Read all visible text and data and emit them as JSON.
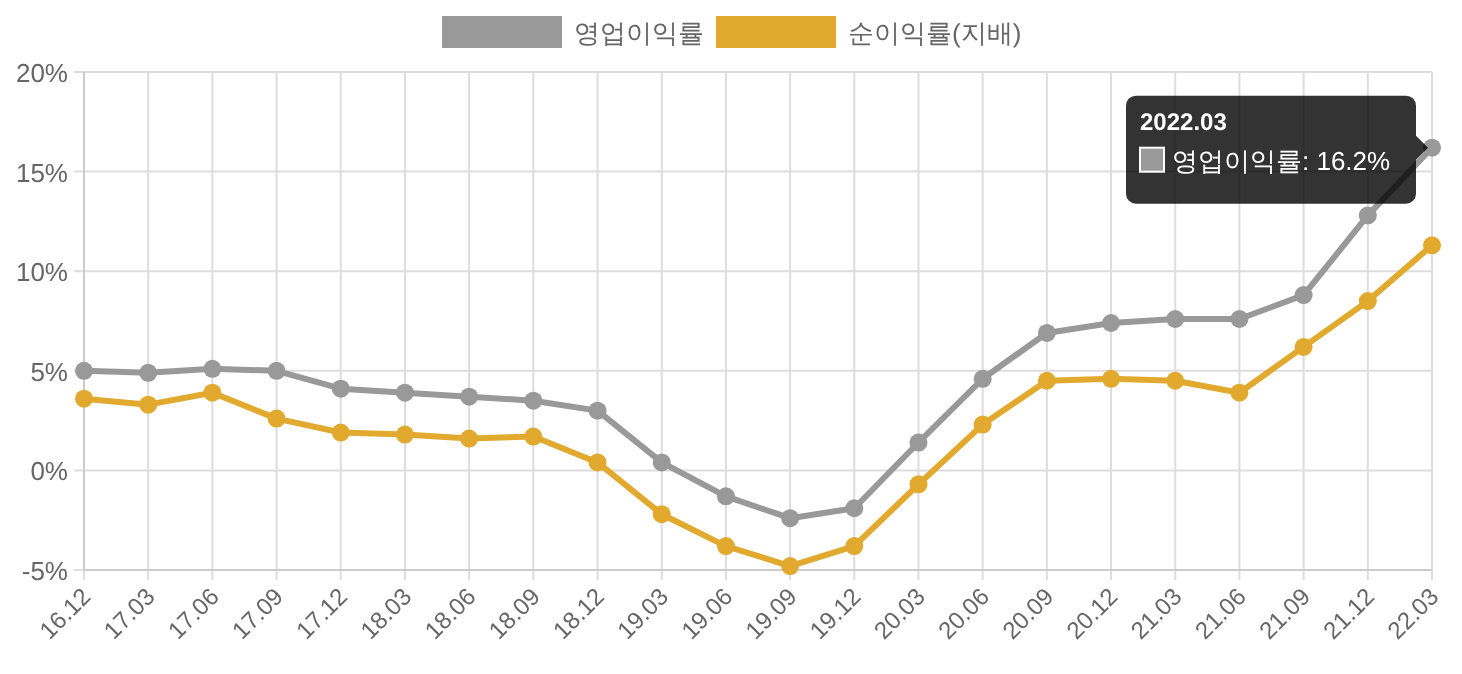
{
  "chart_data": {
    "type": "line",
    "categories": [
      "16.12",
      "17.03",
      "17.06",
      "17.09",
      "17.12",
      "18.03",
      "18.06",
      "18.09",
      "18.12",
      "19.03",
      "19.06",
      "19.09",
      "19.12",
      "20.03",
      "20.06",
      "20.09",
      "20.12",
      "21.03",
      "21.06",
      "21.09",
      "21.12",
      "22.03"
    ],
    "series": [
      {
        "name": "영업이익률",
        "color": "#999999",
        "values": [
          5.0,
          4.9,
          5.1,
          5.0,
          4.1,
          3.9,
          3.7,
          3.5,
          3.0,
          0.4,
          -1.3,
          -2.4,
          -1.9,
          1.4,
          4.6,
          6.9,
          7.4,
          7.6,
          7.6,
          8.8,
          12.8,
          16.2
        ]
      },
      {
        "name": "순이익률(지배)",
        "color": "#e2a92f",
        "values": [
          3.6,
          3.3,
          3.9,
          2.6,
          1.9,
          1.8,
          1.6,
          1.7,
          0.4,
          -2.2,
          -3.8,
          -4.8,
          -3.8,
          -0.7,
          2.3,
          4.5,
          4.6,
          4.5,
          3.9,
          6.2,
          8.5,
          11.3
        ]
      }
    ],
    "ylim": [
      -5,
      20
    ],
    "yticks": [
      {
        "value": -5,
        "label": "-5%"
      },
      {
        "value": 0,
        "label": "0%"
      },
      {
        "value": 5,
        "label": "5%"
      },
      {
        "value": 10,
        "label": "10%"
      },
      {
        "value": 15,
        "label": "15%"
      },
      {
        "value": 20,
        "label": "20%"
      }
    ],
    "grid": true,
    "legend": "top",
    "marker": "circle",
    "line_style": "solid",
    "annotations": [
      "2022.03",
      "영업이익률: 16.2%"
    ]
  }
}
